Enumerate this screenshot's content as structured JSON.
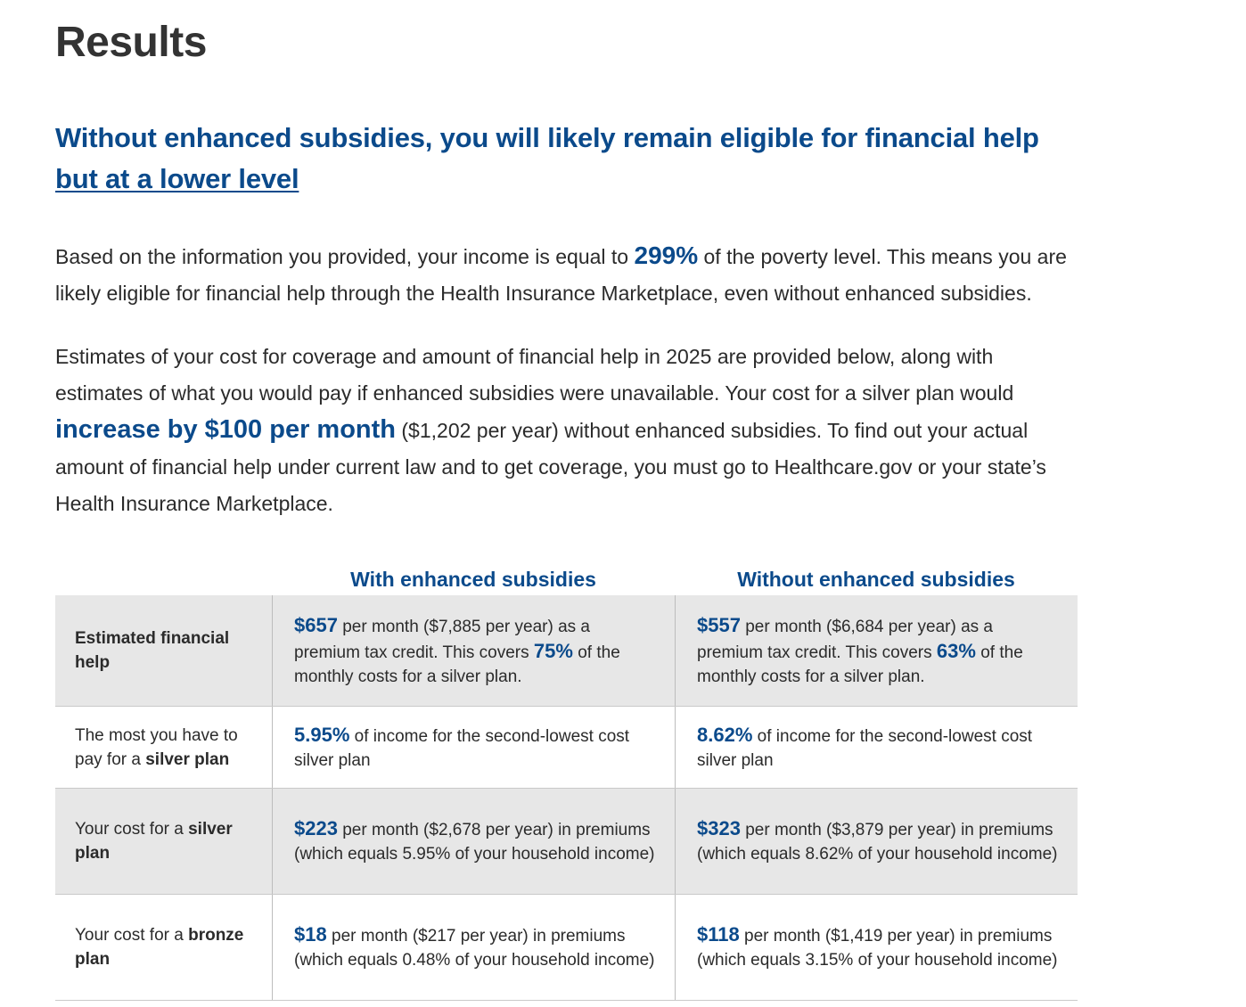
{
  "page": {
    "title": "Results",
    "headline_main": "Without enhanced subsidies, you will likely remain eligible for financial help ",
    "headline_link": "but at a lower level"
  },
  "para1": {
    "t1": "Based on the information you provided, your income is equal to ",
    "percent": "299%",
    "t2": " of the poverty level. This means you are likely eligible for financial help through the Health Insurance Marketplace, even without enhanced subsidies."
  },
  "para2": {
    "t1": "Estimates of your cost for coverage and amount of financial help in 2025 are provided below, along with estimates of what you would pay if enhanced subsidies were unavailable. Your cost for a silver plan would ",
    "increase": "increase by $100 per month",
    "t2": " ($1,202 per year) without enhanced subsidies. To find out your actual amount of financial help under current law and to get coverage, you must go to Healthcare.gov or your state’s Health Insurance Marketplace."
  },
  "table": {
    "col_with": "With enhanced subsidies",
    "col_without": "Without enhanced subsidies",
    "rows": [
      {
        "label_pre": "",
        "label_bold": "Estimated financial help",
        "with": {
          "amount": "$657",
          "t1": " per month ($7,885 per year) as a premium tax credit. This covers ",
          "pct": "75%",
          "t2": " of the monthly costs for a silver plan."
        },
        "without": {
          "amount": "$557",
          "t1": " per month ($6,684 per year) as a premium tax credit. This covers ",
          "pct": "63%",
          "t2": " of the monthly costs for a silver plan."
        }
      },
      {
        "label_pre": "The most you have to pay for a ",
        "label_bold": "silver plan",
        "with": {
          "amount": "5.95%",
          "t1": " of income for the second-lowest cost silver plan"
        },
        "without": {
          "amount": "8.62%",
          "t1": " of income for the second-lowest cost silver plan"
        }
      },
      {
        "label_pre": "Your cost for a ",
        "label_bold": "silver plan",
        "with": {
          "amount": "$223",
          "t1": " per month ($2,678 per year) in premiums (which equals 5.95% of your household income)"
        },
        "without": {
          "amount": "$323",
          "t1": " per month ($3,879 per year) in premiums (which equals 8.62% of your household income)"
        }
      },
      {
        "label_pre": "Your cost for a ",
        "label_bold": "bronze plan",
        "with": {
          "amount": "$18",
          "t1": " per month ($217 per year) in premiums (which equals 0.48% of your household income)"
        },
        "without": {
          "amount": "$118",
          "t1": " per month ($1,419 per year) in premiums (which equals 3.15% of your household income)"
        }
      }
    ]
  },
  "colors": {
    "accent_blue": "#0b4a8b",
    "text": "#2b2b2b",
    "row_shade": "#e7e7e7"
  }
}
